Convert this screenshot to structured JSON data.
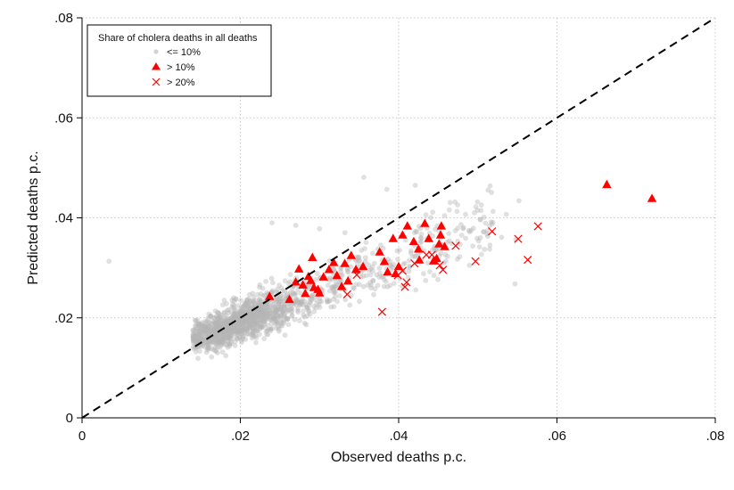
{
  "chart_data": {
    "type": "scatter",
    "xlabel": "Observed deaths p.c.",
    "ylabel": "Predicted deaths p.c.",
    "xlim": [
      0,
      0.08
    ],
    "ylim": [
      0,
      0.08
    ],
    "x_ticks": [
      0,
      0.02,
      0.04,
      0.06,
      0.08
    ],
    "x_tick_labels": [
      "0",
      ".02",
      ".04",
      ".06",
      ".08"
    ],
    "y_ticks": [
      0,
      0.02,
      0.04,
      0.06,
      0.08
    ],
    "y_tick_labels": [
      "0",
      ".02",
      ".04",
      ".06",
      ".08"
    ],
    "grid": true,
    "reference_line": {
      "style": "dashed",
      "from": [
        0,
        0
      ],
      "to": [
        0.08,
        0.08
      ]
    },
    "legend": {
      "title": "Share of cholera deaths in all deaths",
      "placement": "top-left",
      "entries": [
        {
          "label": "<= 10%",
          "marker": "dot",
          "color": "#b4b4b4"
        },
        {
          "label": "> 10%",
          "marker": "triangle",
          "color": "#ff0000"
        },
        {
          "label": "> 20%",
          "marker": "x",
          "color": "#ff0000"
        }
      ]
    },
    "series": [
      {
        "name": "<= 10%",
        "marker": "dot",
        "color": "#b4b4b4",
        "cloud": {
          "count": 1400,
          "x_range": [
            0.014,
            0.052
          ],
          "trend_slope": 0.62,
          "trend_intercept": 0.0068,
          "spread": 0.0026,
          "seed": 7
        },
        "points": [
          [
            0.0034,
            0.0313
          ],
          [
            0.0356,
            0.0481
          ],
          [
            0.0385,
            0.0457
          ],
          [
            0.0421,
            0.0465
          ],
          [
            0.0552,
            0.0434
          ],
          [
            0.0536,
            0.0407
          ],
          [
            0.0548,
            0.0357
          ],
          [
            0.0547,
            0.0268
          ],
          [
            0.0512,
            0.0374
          ],
          [
            0.053,
            0.0361
          ],
          [
            0.024,
            0.039
          ],
          [
            0.027,
            0.0385
          ],
          [
            0.03,
            0.0378
          ],
          [
            0.015,
            0.0148
          ],
          [
            0.016,
            0.0152
          ],
          [
            0.018,
            0.0155
          ],
          [
            0.02,
            0.0161
          ],
          [
            0.0225,
            0.0178
          ],
          [
            0.0245,
            0.0192
          ],
          [
            0.0265,
            0.0212
          ],
          [
            0.0285,
            0.022
          ],
          [
            0.031,
            0.0233
          ],
          [
            0.034,
            0.0245
          ],
          [
            0.037,
            0.0258
          ]
        ]
      },
      {
        "name": "> 10%",
        "marker": "triangle",
        "color": "#ff0000",
        "points": [
          [
            0.0237,
            0.0243
          ],
          [
            0.0262,
            0.0237
          ],
          [
            0.027,
            0.0272
          ],
          [
            0.0274,
            0.0298
          ],
          [
            0.0279,
            0.0266
          ],
          [
            0.0282,
            0.0249
          ],
          [
            0.0286,
            0.0283
          ],
          [
            0.0289,
            0.0275
          ],
          [
            0.0293,
            0.0261
          ],
          [
            0.0298,
            0.0257
          ],
          [
            0.03,
            0.025
          ],
          [
            0.0305,
            0.0282
          ],
          [
            0.0291,
            0.0321
          ],
          [
            0.0312,
            0.0297
          ],
          [
            0.0318,
            0.0311
          ],
          [
            0.0322,
            0.0285
          ],
          [
            0.0328,
            0.0263
          ],
          [
            0.0332,
            0.0309
          ],
          [
            0.0336,
            0.0274
          ],
          [
            0.034,
            0.0325
          ],
          [
            0.0346,
            0.0297
          ],
          [
            0.0355,
            0.0303
          ],
          [
            0.0376,
            0.0332
          ],
          [
            0.0382,
            0.0313
          ],
          [
            0.0386,
            0.0292
          ],
          [
            0.0393,
            0.0359
          ],
          [
            0.0396,
            0.0289
          ],
          [
            0.04,
            0.0303
          ],
          [
            0.0405,
            0.0366
          ],
          [
            0.0411,
            0.0384
          ],
          [
            0.0419,
            0.0353
          ],
          [
            0.0425,
            0.0338
          ],
          [
            0.0426,
            0.0316
          ],
          [
            0.0433,
            0.0389
          ],
          [
            0.0438,
            0.0359
          ],
          [
            0.0444,
            0.0314
          ],
          [
            0.0448,
            0.0319
          ],
          [
            0.0451,
            0.0348
          ],
          [
            0.0453,
            0.0366
          ],
          [
            0.0454,
            0.0384
          ],
          [
            0.0458,
            0.0343
          ],
          [
            0.0663,
            0.0467
          ],
          [
            0.072,
            0.0439
          ]
        ]
      },
      {
        "name": "> 20%",
        "marker": "x",
        "color": "#ff0000",
        "points": [
          [
            0.0335,
            0.0247
          ],
          [
            0.0347,
            0.0286
          ],
          [
            0.0379,
            0.0212
          ],
          [
            0.0399,
            0.0285
          ],
          [
            0.0405,
            0.0294
          ],
          [
            0.0408,
            0.0262
          ],
          [
            0.041,
            0.0271
          ],
          [
            0.042,
            0.0309
          ],
          [
            0.0435,
            0.0326
          ],
          [
            0.0442,
            0.0326
          ],
          [
            0.0452,
            0.0305
          ],
          [
            0.0456,
            0.0296
          ],
          [
            0.0472,
            0.0344
          ],
          [
            0.0497,
            0.0313
          ],
          [
            0.0518,
            0.0373
          ],
          [
            0.0551,
            0.0358
          ],
          [
            0.0563,
            0.0316
          ],
          [
            0.0576,
            0.0383
          ]
        ]
      }
    ]
  }
}
